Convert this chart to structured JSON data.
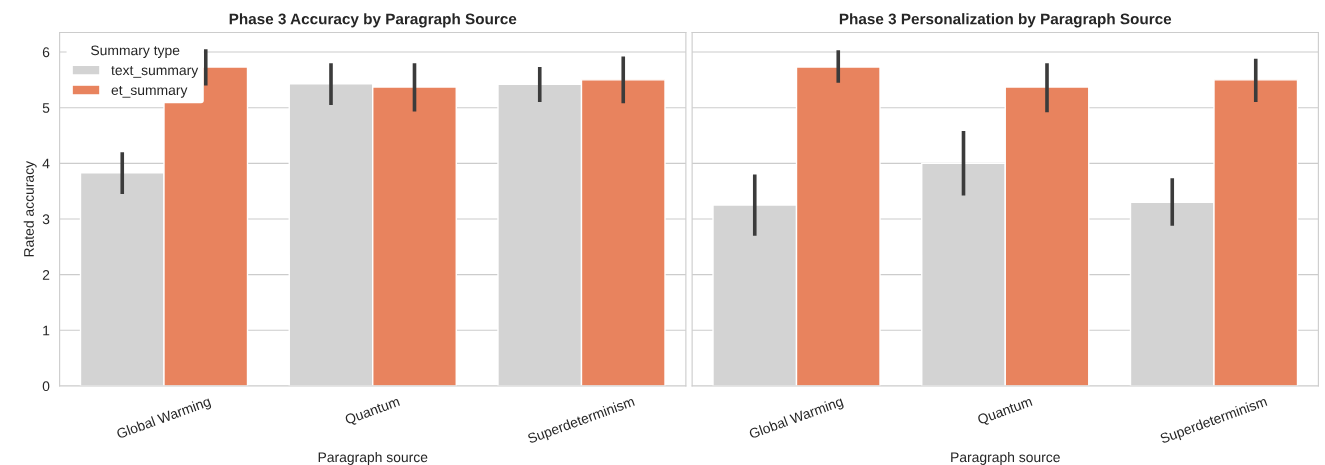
{
  "chart_data": [
    {
      "type": "bar",
      "title": "Phase 3 Accuracy by Paragraph Source",
      "xlabel": "Paragraph source",
      "ylabel": "Rated accuracy",
      "legend_title": "Summary type",
      "legend": "top left",
      "grid": "y",
      "categories": [
        "Global Warming",
        "Quantum",
        "Superdeterminism"
      ],
      "ylim": [
        0,
        6.35
      ],
      "yticks": [
        0,
        1,
        2,
        3,
        4,
        5,
        6
      ],
      "series": [
        {
          "name": "text_summary",
          "color": "#d3d3d3",
          "values": [
            3.83,
            5.43,
            5.42
          ],
          "errors": [
            [
              3.45,
              4.2
            ],
            [
              5.05,
              5.8
            ],
            [
              5.1,
              5.73
            ]
          ]
        },
        {
          "name": "et_summary",
          "color": "#e8835e",
          "values": [
            5.73,
            5.37,
            5.5
          ],
          "errors": [
            [
              5.4,
              6.05
            ],
            [
              4.93,
              5.8
            ],
            [
              5.08,
              5.92
            ]
          ]
        }
      ]
    },
    {
      "type": "bar",
      "title": "Phase 3 Personalization by Paragraph Source",
      "xlabel": "Paragraph source",
      "grid": "y",
      "tick_labels": "x",
      "categories": [
        "Global Warming",
        "Quantum",
        "Superdeterminism"
      ],
      "ylim": [
        0,
        6.35
      ],
      "yticks": [
        0,
        1,
        2,
        3,
        4,
        5,
        6
      ],
      "series": [
        {
          "color": "#d3d3d3",
          "values": [
            3.25,
            4.0,
            3.3
          ],
          "errors": [
            [
              2.7,
              3.8
            ],
            [
              3.42,
              4.58
            ],
            [
              2.88,
              3.73
            ]
          ]
        },
        {
          "color": "#e8835e",
          "values": [
            5.73,
            5.37,
            5.5
          ],
          "errors": [
            [
              5.45,
              6.03
            ],
            [
              4.92,
              5.8
            ],
            [
              5.1,
              5.88
            ]
          ]
        }
      ]
    }
  ]
}
